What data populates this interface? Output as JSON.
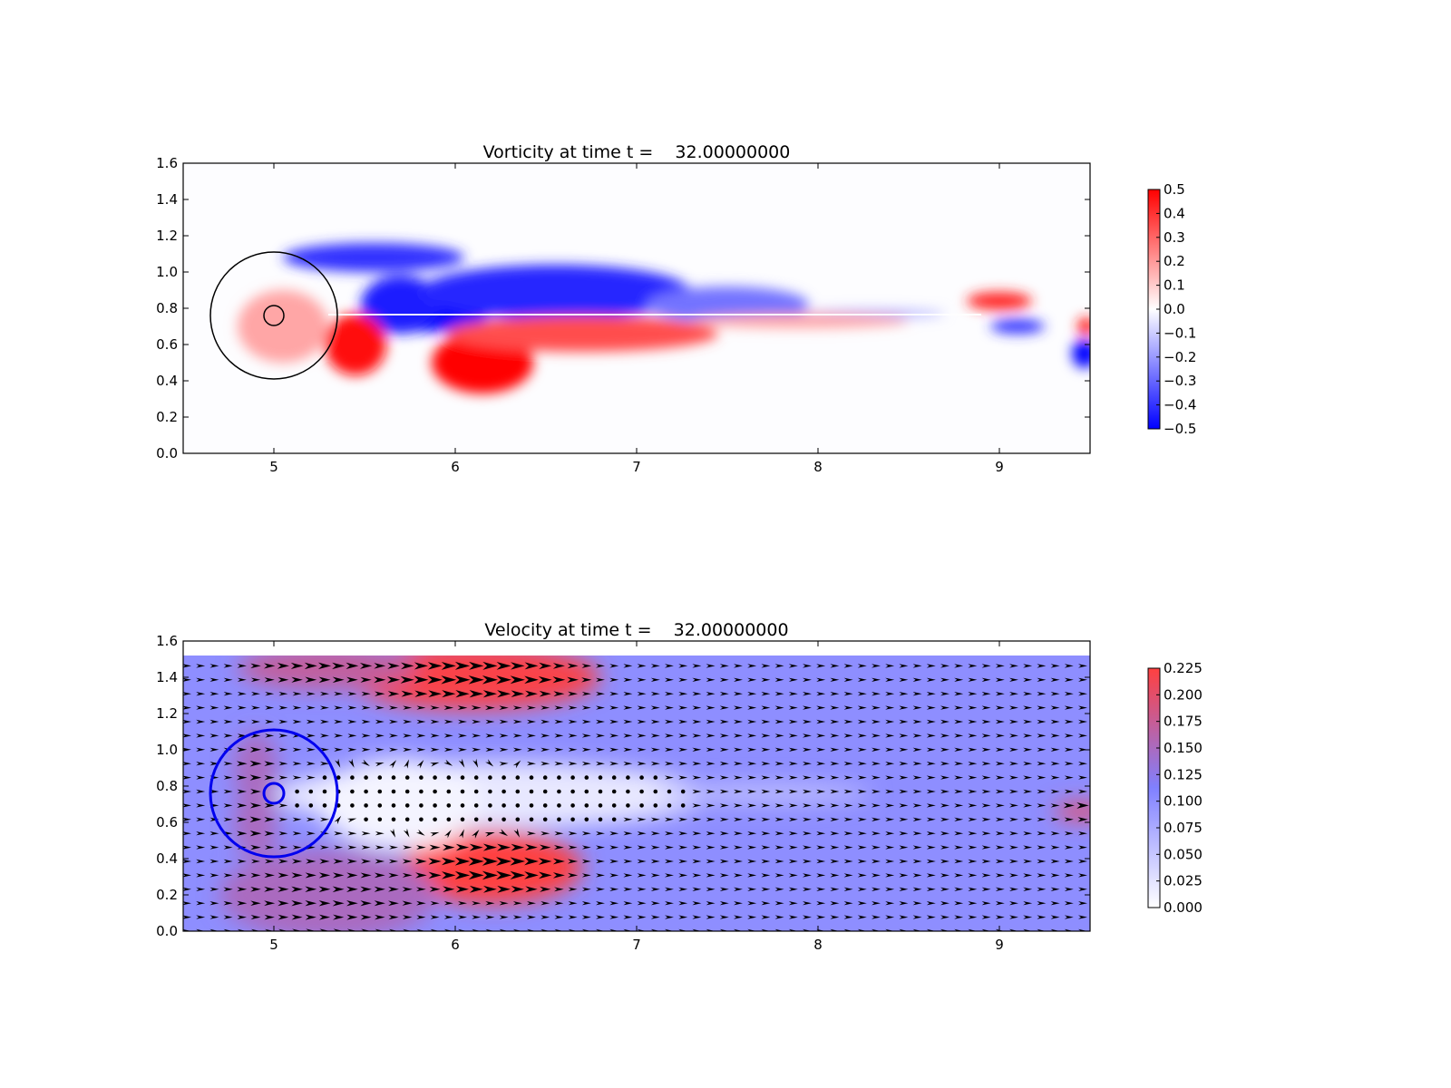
{
  "chart_data": [
    {
      "type": "heatmap",
      "title": "Vorticity at time t =    32.00000000",
      "xlabel": "",
      "ylabel": "",
      "xlim": [
        4.5,
        9.5
      ],
      "ylim": [
        0.0,
        1.6
      ],
      "xticks": [
        "5",
        "6",
        "7",
        "8",
        "9"
      ],
      "yticks": [
        "0.0",
        "0.2",
        "0.4",
        "0.6",
        "0.8",
        "1.0",
        "1.2",
        "1.4",
        "1.6"
      ],
      "colormap": {
        "low": "#0000ff",
        "mid": "#ffffff",
        "high": "#ff0000"
      },
      "colorbar": {
        "range": [
          -0.5,
          0.5
        ],
        "ticks": [
          "0.5",
          "0.4",
          "0.3",
          "0.2",
          "0.1",
          "0.0",
          "−0.1",
          "−0.2",
          "−0.3",
          "−0.4",
          "−0.5"
        ]
      },
      "circles": [
        {
          "cx": 5.0,
          "cy": 0.76,
          "r": 0.35,
          "color": "#000000"
        },
        {
          "cx": 5.0,
          "cy": 0.76,
          "r": 0.055,
          "color": "#000000"
        }
      ],
      "features": [
        {
          "sign": "negative",
          "cx": 5.85,
          "cy": 0.79,
          "rx": 0.35,
          "ry": 0.12,
          "strength": 1.0
        },
        {
          "sign": "negative",
          "cx": 5.7,
          "cy": 0.82,
          "rx": 0.22,
          "ry": 0.16,
          "strength": 0.9
        },
        {
          "sign": "negative",
          "cx": 6.55,
          "cy": 0.89,
          "rx": 0.75,
          "ry": 0.15,
          "strength": 0.85
        },
        {
          "sign": "negative",
          "cx": 5.55,
          "cy": 1.08,
          "rx": 0.5,
          "ry": 0.08,
          "strength": 0.8
        },
        {
          "sign": "negative",
          "cx": 7.5,
          "cy": 0.82,
          "rx": 0.45,
          "ry": 0.1,
          "strength": 0.55
        },
        {
          "sign": "negative",
          "cx": 8.3,
          "cy": 0.77,
          "rx": 0.4,
          "ry": 0.025,
          "strength": 0.3
        },
        {
          "sign": "negative",
          "cx": 9.1,
          "cy": 0.7,
          "rx": 0.15,
          "ry": 0.04,
          "strength": 0.8
        },
        {
          "sign": "negative",
          "cx": 9.47,
          "cy": 0.55,
          "rx": 0.07,
          "ry": 0.08,
          "strength": 1.0
        },
        {
          "sign": "positive",
          "cx": 6.15,
          "cy": 0.5,
          "rx": 0.28,
          "ry": 0.17,
          "strength": 1.0
        },
        {
          "sign": "positive",
          "cx": 5.45,
          "cy": 0.6,
          "rx": 0.17,
          "ry": 0.17,
          "strength": 0.95
        },
        {
          "sign": "positive",
          "cx": 6.7,
          "cy": 0.66,
          "rx": 0.75,
          "ry": 0.1,
          "strength": 0.7
        },
        {
          "sign": "positive",
          "cx": 7.9,
          "cy": 0.73,
          "rx": 0.6,
          "ry": 0.04,
          "strength": 0.35
        },
        {
          "sign": "positive",
          "cx": 9.0,
          "cy": 0.84,
          "rx": 0.18,
          "ry": 0.05,
          "strength": 0.85
        },
        {
          "sign": "positive",
          "cx": 9.48,
          "cy": 0.7,
          "rx": 0.05,
          "ry": 0.05,
          "strength": 0.9
        },
        {
          "sign": "positive",
          "cx": 5.05,
          "cy": 0.7,
          "rx": 0.25,
          "ry": 0.2,
          "strength": 0.35
        }
      ]
    },
    {
      "type": "heatmap",
      "title": "Velocity at time t =    32.00000000",
      "xlabel": "",
      "ylabel": "",
      "xlim": [
        4.5,
        9.5
      ],
      "ylim": [
        0.0,
        1.6
      ],
      "xticks": [
        "5",
        "6",
        "7",
        "8",
        "9"
      ],
      "yticks": [
        "0.0",
        "0.2",
        "0.4",
        "0.6",
        "0.8",
        "1.0",
        "1.2",
        "1.4",
        "1.6"
      ],
      "colormap": {
        "low": "#ffffff",
        "mid": "#8080ff",
        "high": "#ff4040"
      },
      "colorbar": {
        "range": [
          0.0,
          0.225
        ],
        "ticks": [
          "0.225",
          "0.200",
          "0.175",
          "0.150",
          "0.125",
          "0.100",
          "0.075",
          "0.050",
          "0.025",
          "0.000"
        ]
      },
      "field_top": 1.52,
      "background_speed": 0.1,
      "overlay": "quiver",
      "circles": [
        {
          "cx": 5.0,
          "cy": 0.76,
          "r": 0.35,
          "color": "#0000ee"
        },
        {
          "cx": 5.0,
          "cy": 0.76,
          "r": 0.055,
          "color": "#0000ee"
        }
      ],
      "fast_regions": [
        {
          "cx": 6.1,
          "cy": 1.4,
          "rx": 0.7,
          "ry": 0.18,
          "speed": 0.22
        },
        {
          "cx": 5.3,
          "cy": 1.45,
          "rx": 0.5,
          "ry": 0.12,
          "speed": 0.17
        },
        {
          "cx": 6.2,
          "cy": 0.35,
          "rx": 0.5,
          "ry": 0.2,
          "speed": 0.225
        },
        {
          "cx": 5.3,
          "cy": 0.2,
          "rx": 0.6,
          "ry": 0.25,
          "speed": 0.15
        },
        {
          "cx": 4.9,
          "cy": 0.9,
          "rx": 0.12,
          "ry": 0.2,
          "speed": 0.15
        },
        {
          "cx": 4.9,
          "cy": 0.6,
          "rx": 0.12,
          "ry": 0.2,
          "speed": 0.15
        },
        {
          "cx": 9.45,
          "cy": 0.66,
          "rx": 0.15,
          "ry": 0.05,
          "speed": 0.2
        }
      ],
      "slow_regions": [
        {
          "cx": 6.2,
          "cy": 0.75,
          "rx": 1.2,
          "ry": 0.18,
          "speed": 0.02
        },
        {
          "cx": 5.7,
          "cy": 0.7,
          "rx": 0.45,
          "ry": 0.25,
          "speed": 0.01
        },
        {
          "cx": 7.7,
          "cy": 0.76,
          "rx": 0.6,
          "ry": 0.06,
          "speed": 0.06
        }
      ]
    }
  ]
}
